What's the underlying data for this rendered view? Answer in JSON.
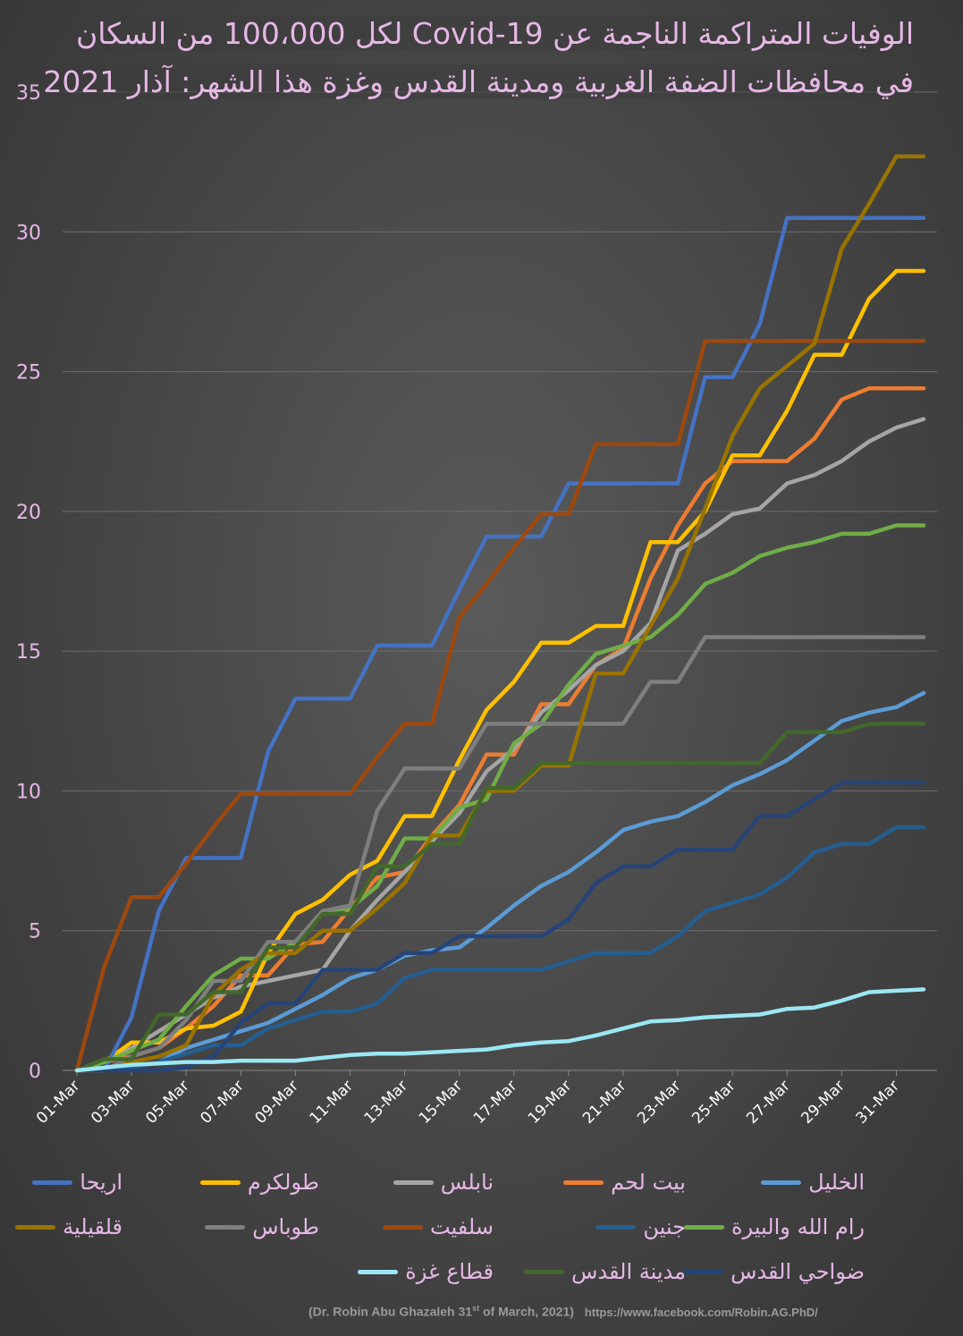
{
  "chart_data": {
    "type": "line",
    "title_line1": "الوفيات المتراكمة الناجمة عن Covid-19  لكل 100،000 من السكان",
    "title_line2": "في محافظات الضفة الغربية ومدينة القدس وغزة هذا الشهر: آذار 2021",
    "ylim": [
      0,
      35
    ],
    "yticks": [
      "0",
      "5",
      "10",
      "15",
      "20",
      "25",
      "30",
      "35"
    ],
    "xticks": [
      "01-Mar",
      "03-Mar",
      "05-Mar",
      "07-Mar",
      "09-Mar",
      "11-Mar",
      "13-Mar",
      "15-Mar",
      "17-Mar",
      "19-Mar",
      "21-Mar",
      "23-Mar",
      "25-Mar",
      "27-Mar",
      "29-Mar",
      "31-Mar"
    ],
    "grid": true,
    "legend_position": "bottom",
    "series": [
      {
        "name": "الخليل",
        "color": "#5b9bd5",
        "values": [
          0,
          0,
          0.1,
          0.3,
          0.8,
          1.1,
          1.4,
          1.7,
          2.2,
          2.7,
          3.3,
          3.6,
          4.1,
          4.3,
          4.4,
          5.1,
          5.9,
          6.6,
          7.1,
          7.8,
          8.6,
          8.9,
          9.1,
          9.6,
          10.2,
          10.6,
          11.1,
          11.8,
          12.5,
          12.8,
          13.0,
          13.5
        ]
      },
      {
        "name": "بيت لحم",
        "color": "#ed7d31",
        "values": [
          0,
          0.3,
          0.5,
          0.8,
          1.5,
          2.3,
          3.4,
          3.4,
          4.5,
          4.6,
          5.8,
          6.9,
          7.1,
          8.4,
          9.5,
          11.3,
          11.3,
          13.1,
          13.1,
          14.5,
          15.1,
          17.6,
          19.5,
          21.0,
          21.8,
          21.8,
          21.8,
          22.6,
          24.0,
          24.4,
          24.4,
          24.4
        ]
      },
      {
        "name": "نابلس",
        "color": "#a5a5a5",
        "values": [
          0,
          0.3,
          0.8,
          1.4,
          2.0,
          2.6,
          3.0,
          3.2,
          3.4,
          3.6,
          5.0,
          6.1,
          7.1,
          8.2,
          9.2,
          10.7,
          11.5,
          12.8,
          13.6,
          14.5,
          15.0,
          16.0,
          18.6,
          19.2,
          19.9,
          20.1,
          21.0,
          21.3,
          21.8,
          22.5,
          23.0,
          23.3
        ]
      },
      {
        "name": "طولكرم",
        "color": "#ffc000",
        "values": [
          0,
          0.3,
          1.0,
          1.0,
          1.5,
          1.6,
          2.1,
          4.2,
          5.6,
          6.1,
          7.0,
          7.5,
          9.1,
          9.1,
          11.1,
          12.9,
          13.9,
          15.3,
          15.3,
          15.9,
          15.9,
          18.9,
          18.9,
          20.0,
          22.0,
          22.0,
          23.6,
          25.6,
          25.6,
          27.6,
          28.6,
          28.6
        ]
      },
      {
        "name": "اريحا",
        "color": "#4472c4",
        "values": [
          0,
          0,
          1.9,
          5.7,
          7.6,
          7.6,
          7.6,
          11.4,
          13.3,
          13.3,
          13.3,
          15.2,
          15.2,
          15.2,
          17.2,
          19.1,
          19.1,
          19.1,
          21.0,
          21.0,
          21.0,
          21.0,
          21.0,
          24.8,
          24.8,
          26.7,
          30.5,
          30.5,
          30.5,
          30.5,
          30.5,
          30.5
        ]
      },
      {
        "name": "رام الله والبيرة",
        "color": "#70ad47",
        "values": [
          0,
          0.3,
          0.7,
          1.1,
          2.3,
          3.4,
          4.0,
          4.0,
          4.6,
          5.7,
          5.8,
          6.6,
          8.3,
          8.3,
          9.4,
          9.7,
          11.7,
          12.4,
          13.8,
          14.9,
          15.2,
          15.5,
          16.3,
          17.4,
          17.8,
          18.4,
          18.7,
          18.9,
          19.2,
          19.2,
          19.5,
          19.5
        ]
      },
      {
        "name": "جنين",
        "color": "#255e91",
        "values": [
          0,
          0,
          0.1,
          0.3,
          0.6,
          0.9,
          0.9,
          1.5,
          1.8,
          2.1,
          2.1,
          2.4,
          3.3,
          3.6,
          3.6,
          3.6,
          3.6,
          3.6,
          3.9,
          4.2,
          4.2,
          4.2,
          4.8,
          5.7,
          6.0,
          6.3,
          6.9,
          7.8,
          8.1,
          8.1,
          8.7,
          8.7
        ]
      },
      {
        "name": "سلفيت",
        "color": "#9e480e",
        "values": [
          0,
          3.7,
          6.2,
          6.2,
          7.4,
          8.7,
          9.9,
          9.9,
          9.9,
          9.9,
          9.9,
          11.2,
          12.4,
          12.4,
          16.2,
          17.4,
          18.7,
          19.9,
          19.9,
          22.4,
          22.4,
          22.4,
          22.4,
          26.1,
          26.1,
          26.1,
          26.1,
          26.1,
          26.1,
          26.1,
          26.1,
          26.1
        ]
      },
      {
        "name": "طوباس",
        "color": "#7f7f7f",
        "values": [
          0,
          0,
          0.5,
          0.8,
          1.8,
          3.2,
          3.2,
          4.6,
          4.6,
          5.7,
          5.9,
          9.3,
          10.8,
          10.8,
          10.8,
          12.4,
          12.4,
          12.4,
          12.4,
          12.4,
          12.4,
          13.9,
          13.9,
          15.5,
          15.5,
          15.5,
          15.5,
          15.5,
          15.5,
          15.5,
          15.5,
          15.5
        ]
      },
      {
        "name": "قلقيلية",
        "color": "#997300",
        "values": [
          0,
          0,
          0.3,
          0.5,
          0.9,
          2.7,
          3.6,
          4.2,
          4.2,
          5.0,
          5.0,
          5.8,
          6.7,
          8.4,
          8.4,
          10.0,
          10.0,
          10.9,
          10.9,
          14.2,
          14.2,
          15.9,
          17.6,
          20.1,
          22.7,
          24.4,
          25.2,
          26.0,
          29.4,
          31.0,
          32.7,
          32.7
        ]
      },
      {
        "name": "ضواحي القدس",
        "color": "#264478",
        "values": [
          0,
          0,
          0,
          0,
          0.1,
          0.5,
          1.7,
          2.4,
          2.4,
          3.6,
          3.6,
          3.6,
          4.2,
          4.2,
          4.8,
          4.8,
          4.8,
          4.8,
          5.4,
          6.7,
          7.3,
          7.3,
          7.9,
          7.9,
          7.9,
          9.1,
          9.1,
          9.7,
          10.3,
          10.3,
          10.3,
          10.3
        ]
      },
      {
        "name": "مدينة القدس",
        "color": "#43682b",
        "values": [
          0,
          0.4,
          0.4,
          2.0,
          2.0,
          2.8,
          2.8,
          4.4,
          4.4,
          5.6,
          5.6,
          7.3,
          7.3,
          8.1,
          8.1,
          10.1,
          10.1,
          11.0,
          11.0,
          11.0,
          11.0,
          11.0,
          11.0,
          11.0,
          11.0,
          11.0,
          12.1,
          12.1,
          12.1,
          12.4,
          12.4,
          12.4
        ]
      },
      {
        "name": "قطاع غزة",
        "color": "#9be7f4",
        "values": [
          0,
          0.1,
          0.2,
          0.25,
          0.3,
          0.3,
          0.35,
          0.35,
          0.35,
          0.45,
          0.55,
          0.6,
          0.6,
          0.65,
          0.7,
          0.75,
          0.9,
          1.0,
          1.05,
          1.25,
          1.5,
          1.75,
          1.8,
          1.9,
          1.95,
          2.0,
          2.2,
          2.25,
          2.5,
          2.8,
          2.85,
          2.9
        ]
      }
    ]
  },
  "footer": {
    "author": "(Dr. Robin Abu Ghazaleh 31",
    "author_sup": "st",
    "author_tail": " of March, 2021)",
    "url": "https://www.facebook.com/Robin.AG.PhD/"
  }
}
